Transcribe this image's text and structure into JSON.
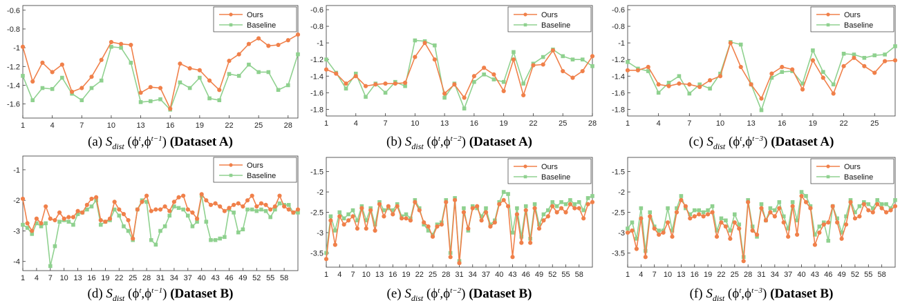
{
  "colors": {
    "ours": "#f0804a",
    "baseline": "#8fd18f"
  },
  "legend": {
    "ours": "Ours",
    "baseline": "Baseline"
  },
  "chart_data": [
    {
      "id": "a",
      "type": "line",
      "caption": {
        "prefix": "(a) ",
        "func": "S",
        "sub": "dist",
        "sup": "t−1",
        "dataset": "Dataset A"
      },
      "ylim": [
        -1.75,
        -0.55
      ],
      "yticks": [
        -0.6,
        -0.8,
        -1,
        -1.2,
        -1.4,
        -1.6
      ],
      "ytick_labels": [
        "-0.6",
        "-0.8",
        "-1",
        "-1.2",
        "-1.4",
        "-1.6"
      ],
      "xlim": [
        1,
        29
      ],
      "xticks": [
        1,
        4,
        7,
        10,
        13,
        16,
        19,
        22,
        25,
        28
      ],
      "legend_position": "top-right",
      "series": [
        {
          "name": "Ours",
          "values": [
            -0.99,
            -1.36,
            -1.16,
            -1.26,
            -1.18,
            -1.47,
            -1.43,
            -1.31,
            -1.13,
            -0.94,
            -0.96,
            -0.97,
            -1.48,
            -1.42,
            -1.43,
            -1.65,
            -1.17,
            -1.22,
            -1.24,
            -1.35,
            -1.45,
            -1.14,
            -1.07,
            -0.96,
            -0.9,
            -0.98,
            -0.97,
            -0.92,
            -0.86
          ]
        },
        {
          "name": "Baseline",
          "values": [
            -1.3,
            -1.56,
            -1.43,
            -1.44,
            -1.32,
            -1.49,
            -1.56,
            -1.43,
            -1.35,
            -0.99,
            -1.0,
            -1.16,
            -1.58,
            -1.57,
            -1.55,
            -1.66,
            -1.37,
            -1.43,
            -1.32,
            -1.54,
            -1.56,
            -1.28,
            -1.3,
            -1.18,
            -1.26,
            -1.26,
            -1.45,
            -1.4,
            -1.07
          ]
        }
      ]
    },
    {
      "id": "b",
      "type": "line",
      "caption": {
        "prefix": "(b) ",
        "func": "S",
        "sub": "dist",
        "sup": "t−2",
        "dataset": "Dataset A"
      },
      "ylim": [
        -1.88,
        -0.55
      ],
      "yticks": [
        -0.6,
        -0.8,
        -1,
        -1.2,
        -1.4,
        -1.6,
        -1.8
      ],
      "ytick_labels": [
        "-0.6",
        "-0.8",
        "-1",
        "-1.2",
        "-1.4",
        "-1.6",
        "-1.8"
      ],
      "xlim": [
        1,
        28
      ],
      "xticks": [
        1,
        4,
        7,
        10,
        13,
        16,
        19,
        22,
        25,
        28
      ],
      "legend_position": "top-right",
      "series": [
        {
          "name": "Ours",
          "values": [
            -1.32,
            -1.37,
            -1.49,
            -1.4,
            -1.52,
            -1.5,
            -1.49,
            -1.49,
            -1.48,
            -1.17,
            -1.0,
            -1.2,
            -1.61,
            -1.5,
            -1.66,
            -1.4,
            -1.3,
            -1.38,
            -1.58,
            -1.2,
            -1.63,
            -1.27,
            -1.26,
            -1.09,
            -1.34,
            -1.42,
            -1.34,
            -1.16
          ]
        },
        {
          "name": "Baseline",
          "values": [
            -1.2,
            -1.36,
            -1.55,
            -1.37,
            -1.65,
            -1.49,
            -1.6,
            -1.47,
            -1.52,
            -0.97,
            -0.98,
            -1.03,
            -1.66,
            -1.49,
            -1.79,
            -1.47,
            -1.38,
            -1.44,
            -1.47,
            -1.11,
            -1.49,
            -1.25,
            -1.17,
            -1.08,
            -1.16,
            -1.2,
            -1.2,
            -1.28
          ]
        }
      ]
    },
    {
      "id": "c",
      "type": "line",
      "caption": {
        "prefix": "(c) ",
        "func": "S",
        "sub": "dist",
        "sup": "t−3",
        "dataset": "Dataset A"
      },
      "ylim": [
        -1.88,
        -0.55
      ],
      "yticks": [
        -0.6,
        -0.8,
        -1,
        -1.2,
        -1.4,
        -1.6,
        -1.8
      ],
      "ytick_labels": [
        "-0.6",
        "-0.8",
        "-1",
        "-1.2",
        "-1.4",
        "-1.6",
        "-1.8"
      ],
      "xlim": [
        1,
        27
      ],
      "xticks": [
        1,
        4,
        7,
        10,
        13,
        16,
        19,
        22,
        25
      ],
      "legend_position": "top-right",
      "series": [
        {
          "name": "Ours",
          "values": [
            -1.33,
            -1.33,
            -1.29,
            -1.5,
            -1.52,
            -1.49,
            -1.5,
            -1.53,
            -1.45,
            -1.4,
            -1.0,
            -1.29,
            -1.5,
            -1.67,
            -1.37,
            -1.29,
            -1.32,
            -1.56,
            -1.21,
            -1.42,
            -1.61,
            -1.28,
            -1.18,
            -1.28,
            -1.36,
            -1.22,
            -1.21
          ]
        },
        {
          "name": "Baseline",
          "values": [
            -1.23,
            -1.31,
            -1.34,
            -1.6,
            -1.48,
            -1.4,
            -1.61,
            -1.5,
            -1.55,
            -1.37,
            -0.99,
            -1.02,
            -1.5,
            -1.81,
            -1.42,
            -1.35,
            -1.34,
            -1.49,
            -1.09,
            -1.35,
            -1.5,
            -1.13,
            -1.14,
            -1.18,
            -1.15,
            -1.14,
            -1.04
          ]
        }
      ]
    },
    {
      "id": "d",
      "type": "line",
      "caption": {
        "prefix": "(d) ",
        "func": "S",
        "sub": "dist",
        "sup": "t−1",
        "dataset": "Dataset B"
      },
      "ylim": [
        -4.3,
        -0.55
      ],
      "yticks": [
        -1,
        -2,
        -3,
        -4
      ],
      "ytick_labels": [
        "-1",
        "-2",
        "-3",
        "-4"
      ],
      "xlim": [
        1,
        61
      ],
      "xticks": [
        1,
        4,
        7,
        10,
        13,
        16,
        19,
        22,
        25,
        28,
        31,
        34,
        37,
        40,
        43,
        46,
        49,
        52,
        55,
        58
      ],
      "legend_position": "top-right",
      "series": [
        {
          "name": "Ours",
          "values": [
            -1.95,
            -2.75,
            -3.0,
            -2.6,
            -2.75,
            -2.2,
            -2.6,
            -2.65,
            -2.4,
            -2.6,
            -2.55,
            -2.55,
            -2.35,
            -2.4,
            -2.15,
            -1.95,
            -1.9,
            -2.65,
            -2.7,
            -2.6,
            -2.05,
            -2.3,
            -2.45,
            -2.65,
            -3.25,
            -2.3,
            -2.05,
            -1.85,
            -2.35,
            -2.3,
            -2.3,
            -2.2,
            -2.35,
            -2.05,
            -1.9,
            -1.85,
            -2.3,
            -2.4,
            -2.6,
            -1.8,
            -2.0,
            -2.15,
            -2.1,
            -2.2,
            -2.35,
            -2.25,
            -2.15,
            -2.1,
            -2.2,
            -2.0,
            -1.85,
            -2.2,
            -2.1,
            -2.15,
            -2.3,
            -2.2,
            -1.85,
            -2.2,
            -2.3,
            -2.4,
            -2.3
          ]
        },
        {
          "name": "Baseline",
          "values": [
            -2.8,
            -2.9,
            -3.1,
            -2.75,
            -2.85,
            -2.75,
            -4.15,
            -3.5,
            -2.7,
            -2.65,
            -2.7,
            -2.8,
            -2.45,
            -2.4,
            -2.3,
            -2.2,
            -2.0,
            -2.8,
            -2.7,
            -2.65,
            -2.3,
            -2.5,
            -2.85,
            -3.0,
            -3.3,
            -2.3,
            -2.0,
            -2.05,
            -3.3,
            -3.45,
            -3.0,
            -2.85,
            -2.5,
            -2.2,
            -2.25,
            -2.3,
            -2.5,
            -2.85,
            -2.7,
            -1.85,
            -2.7,
            -3.3,
            -3.3,
            -3.25,
            -3.2,
            -2.3,
            -2.4,
            -3.05,
            -2.95,
            -2.3,
            -2.3,
            -2.35,
            -2.3,
            -2.35,
            -2.55,
            -2.3,
            -2.1,
            -2.15,
            -2.15,
            -2.4,
            -2.4
          ]
        }
      ]
    },
    {
      "id": "e",
      "type": "line",
      "caption": {
        "prefix": "(e) ",
        "func": "S",
        "sub": "dist",
        "sup": "t−2",
        "dataset": "Dataset B"
      },
      "ylim": [
        -3.85,
        -1.15
      ],
      "yticks": [
        -1.5,
        -2,
        -2.5,
        -3,
        -3.5
      ],
      "ytick_labels": [
        "-1.5",
        "-2",
        "-2.5",
        "-3",
        "-3.5"
      ],
      "xlim": [
        1,
        61
      ],
      "xticks": [
        1,
        4,
        7,
        10,
        13,
        16,
        19,
        22,
        25,
        28,
        31,
        34,
        37,
        40,
        43,
        46,
        49,
        52,
        55,
        58
      ],
      "legend_position": "top-right",
      "series": [
        {
          "name": "Ours",
          "values": [
            -3.65,
            -2.7,
            -3.3,
            -2.6,
            -2.8,
            -2.7,
            -2.6,
            -2.9,
            -2.4,
            -2.9,
            -2.45,
            -2.95,
            -2.3,
            -2.6,
            -2.35,
            -2.55,
            -2.35,
            -2.65,
            -2.65,
            -2.7,
            -2.25,
            -2.45,
            -2.75,
            -2.85,
            -3.1,
            -2.85,
            -2.8,
            -2.25,
            -3.6,
            -2.2,
            -3.75,
            -2.5,
            -2.9,
            -2.4,
            -2.35,
            -2.7,
            -2.5,
            -2.85,
            -2.75,
            -2.3,
            -2.2,
            -2.35,
            -3.6,
            -2.55,
            -3.25,
            -2.45,
            -3.25,
            -2.4,
            -2.9,
            -2.7,
            -2.6,
            -2.35,
            -2.5,
            -2.4,
            -2.5,
            -2.3,
            -2.4,
            -2.4,
            -2.65,
            -2.3,
            -2.25
          ]
        },
        {
          "name": "Baseline",
          "values": [
            -3.5,
            -2.6,
            -2.95,
            -2.5,
            -2.65,
            -2.55,
            -2.45,
            -2.7,
            -2.35,
            -2.7,
            -2.4,
            -2.8,
            -2.25,
            -2.45,
            -2.4,
            -2.45,
            -2.3,
            -2.6,
            -2.55,
            -2.65,
            -2.2,
            -2.4,
            -2.8,
            -2.95,
            -3.05,
            -2.8,
            -2.75,
            -2.2,
            -3.5,
            -2.15,
            -3.7,
            -2.4,
            -2.95,
            -2.35,
            -2.4,
            -2.6,
            -2.4,
            -2.8,
            -2.7,
            -2.25,
            -2.0,
            -2.05,
            -3.0,
            -2.4,
            -3.1,
            -2.35,
            -3.15,
            -2.3,
            -2.8,
            -2.55,
            -2.45,
            -2.25,
            -2.35,
            -2.25,
            -2.3,
            -2.2,
            -2.3,
            -2.25,
            -2.45,
            -2.15,
            -2.1
          ]
        }
      ]
    },
    {
      "id": "f",
      "type": "line",
      "caption": {
        "prefix": "(f) ",
        "func": "S",
        "sub": "dist",
        "sup": "t−3",
        "dataset": "Dataset B"
      },
      "ylim": [
        -3.85,
        -1.15
      ],
      "yticks": [
        -1.5,
        -2,
        -2.5,
        -3,
        -3.5
      ],
      "ytick_labels": [
        "-1.5",
        "-2",
        "-2.5",
        "-3",
        "-3.5"
      ],
      "xlim": [
        1,
        61
      ],
      "xticks": [
        1,
        4,
        7,
        10,
        13,
        16,
        19,
        22,
        25,
        28,
        31,
        34,
        37,
        40,
        43,
        46,
        49,
        52,
        55,
        58
      ],
      "legend_position": "top-right",
      "series": [
        {
          "name": "Ours",
          "values": [
            -3.0,
            -2.95,
            -3.4,
            -2.65,
            -3.6,
            -2.6,
            -2.9,
            -3.05,
            -3.0,
            -2.75,
            -3.1,
            -2.5,
            -2.2,
            -2.35,
            -2.65,
            -2.6,
            -2.55,
            -2.6,
            -2.55,
            -2.5,
            -3.1,
            -2.75,
            -2.85,
            -3.15,
            -2.75,
            -2.9,
            -3.7,
            -2.25,
            -2.95,
            -3.05,
            -2.4,
            -2.7,
            -2.5,
            -2.6,
            -2.4,
            -2.75,
            -3.1,
            -2.35,
            -3.05,
            -2.1,
            -2.25,
            -2.4,
            -3.3,
            -3.0,
            -2.8,
            -2.75,
            -2.35,
            -2.75,
            -3.15,
            -2.8,
            -2.25,
            -2.65,
            -2.6,
            -2.3,
            -2.45,
            -2.5,
            -2.3,
            -2.4,
            -2.5,
            -2.45,
            -2.35
          ]
        },
        {
          "name": "Baseline",
          "values": [
            -2.9,
            -2.75,
            -3.15,
            -2.4,
            -3.45,
            -2.5,
            -2.85,
            -2.95,
            -2.95,
            -2.4,
            -2.95,
            -2.4,
            -2.1,
            -2.4,
            -2.55,
            -2.45,
            -2.45,
            -2.5,
            -2.45,
            -2.35,
            -2.95,
            -2.65,
            -2.7,
            -2.95,
            -2.55,
            -2.8,
            -3.6,
            -2.2,
            -2.85,
            -3.1,
            -2.3,
            -2.7,
            -2.4,
            -2.45,
            -2.25,
            -2.6,
            -2.9,
            -2.25,
            -2.7,
            -2.0,
            -2.1,
            -2.35,
            -3.05,
            -2.85,
            -2.75,
            -3.2,
            -2.35,
            -2.65,
            -3.0,
            -2.6,
            -2.2,
            -2.5,
            -2.35,
            -2.25,
            -2.3,
            -2.4,
            -2.2,
            -2.3,
            -2.3,
            -2.4,
            -2.2
          ]
        }
      ]
    }
  ]
}
